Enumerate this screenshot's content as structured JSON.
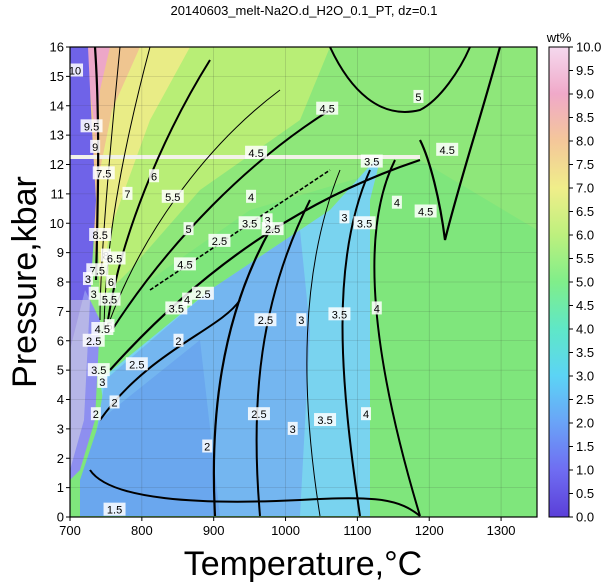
{
  "chart_data": {
    "type": "heatmap",
    "title": "20140603_melt-Na2O.d_H2O_0.1_PT, dz=0.1",
    "xlabel": "Temperature,°C",
    "ylabel": "Pressure,kbar",
    "xlim": [
      700,
      1350
    ],
    "ylim": [
      0,
      16
    ],
    "x_ticks": [
      "700",
      "800",
      "900",
      "1000",
      "1100",
      "1200",
      "1300"
    ],
    "y_ticks": [
      "0",
      "1",
      "2",
      "3",
      "4",
      "5",
      "6",
      "7",
      "8",
      "9",
      "10",
      "11",
      "12",
      "13",
      "14",
      "15",
      "16"
    ],
    "grid": true,
    "colorbar": {
      "label": "wt%",
      "range": [
        0.0,
        10.0
      ],
      "ticks": [
        "0.0",
        "0.5",
        "1.0",
        "1.5",
        "2.0",
        "2.5",
        "3.0",
        "3.5",
        "4.0",
        "4.5",
        "5.0",
        "5.5",
        "6.0",
        "6.5",
        "7.0",
        "7.5",
        "8.0",
        "8.5",
        "9.0",
        "9.5",
        "10.0"
      ]
    },
    "contour_labels": [
      {
        "text": "10",
        "x": 707,
        "y": 15.2
      },
      {
        "text": "9.5",
        "x": 730,
        "y": 13.3
      },
      {
        "text": "9",
        "x": 735,
        "y": 12.6
      },
      {
        "text": "7.5",
        "x": 747,
        "y": 11.7
      },
      {
        "text": "7",
        "x": 780,
        "y": 11.0
      },
      {
        "text": "6",
        "x": 817,
        "y": 11.6
      },
      {
        "text": "5.5",
        "x": 843,
        "y": 10.9
      },
      {
        "text": "5",
        "x": 865,
        "y": 9.8
      },
      {
        "text": "4.5",
        "x": 860,
        "y": 8.6
      },
      {
        "text": "8.5",
        "x": 742,
        "y": 9.6
      },
      {
        "text": "8",
        "x": 750,
        "y": 8.9
      },
      {
        "text": "6.5",
        "x": 762,
        "y": 8.8
      },
      {
        "text": "7.5",
        "x": 738,
        "y": 8.4
      },
      {
        "text": "6",
        "x": 757,
        "y": 8.0
      },
      {
        "text": "5.5",
        "x": 755,
        "y": 7.4
      },
      {
        "text": "5",
        "x": 755,
        "y": 6.5
      },
      {
        "text": "4.5",
        "x": 745,
        "y": 6.4
      },
      {
        "text": "3",
        "x": 733,
        "y": 7.6
      },
      {
        "text": "3",
        "x": 725,
        "y": 8.1
      },
      {
        "text": "2.5",
        "x": 733,
        "y": 6.0
      },
      {
        "text": "3.5",
        "x": 740,
        "y": 5.0
      },
      {
        "text": "3",
        "x": 745,
        "y": 4.6
      },
      {
        "text": "2.5",
        "x": 793,
        "y": 5.2
      },
      {
        "text": "2",
        "x": 736,
        "y": 3.5
      },
      {
        "text": "2",
        "x": 762,
        "y": 3.9
      },
      {
        "text": "2",
        "x": 851,
        "y": 6.0
      },
      {
        "text": "2",
        "x": 891,
        "y": 2.4
      },
      {
        "text": "1.5",
        "x": 762,
        "y": 0.25
      },
      {
        "text": "2.5",
        "x": 885,
        "y": 7.6
      },
      {
        "text": "3.5",
        "x": 848,
        "y": 7.1
      },
      {
        "text": "4",
        "x": 863,
        "y": 7.4
      },
      {
        "text": "2.5",
        "x": 963,
        "y": 3.5
      },
      {
        "text": "2.5",
        "x": 972,
        "y": 6.7
      },
      {
        "text": "3",
        "x": 1010,
        "y": 3.0
      },
      {
        "text": "3",
        "x": 1022,
        "y": 6.7
      },
      {
        "text": "3",
        "x": 1082,
        "y": 10.2
      },
      {
        "text": "3.5",
        "x": 1055,
        "y": 3.3
      },
      {
        "text": "3.5",
        "x": 1075,
        "y": 6.9
      },
      {
        "text": "3.5",
        "x": 1110,
        "y": 10.0
      },
      {
        "text": "3.5",
        "x": 950,
        "y": 10.0
      },
      {
        "text": "3",
        "x": 975,
        "y": 10.1
      },
      {
        "text": "2.5",
        "x": 982,
        "y": 9.8
      },
      {
        "text": "2.5",
        "x": 908,
        "y": 9.4
      },
      {
        "text": "3.5",
        "x": 1120,
        "y": 12.1
      },
      {
        "text": "4",
        "x": 952,
        "y": 10.9
      },
      {
        "text": "4",
        "x": 1112,
        "y": 3.5
      },
      {
        "text": "4",
        "x": 1127,
        "y": 7.1
      },
      {
        "text": "4",
        "x": 1155,
        "y": 10.7
      },
      {
        "text": "4.5",
        "x": 1195,
        "y": 10.4
      },
      {
        "text": "4.5",
        "x": 1058,
        "y": 13.9
      },
      {
        "text": "4.5",
        "x": 959,
        "y": 12.4
      },
      {
        "text": "4.5",
        "x": 1225,
        "y": 12.5
      },
      {
        "text": "5",
        "x": 1185,
        "y": 14.3
      }
    ]
  }
}
